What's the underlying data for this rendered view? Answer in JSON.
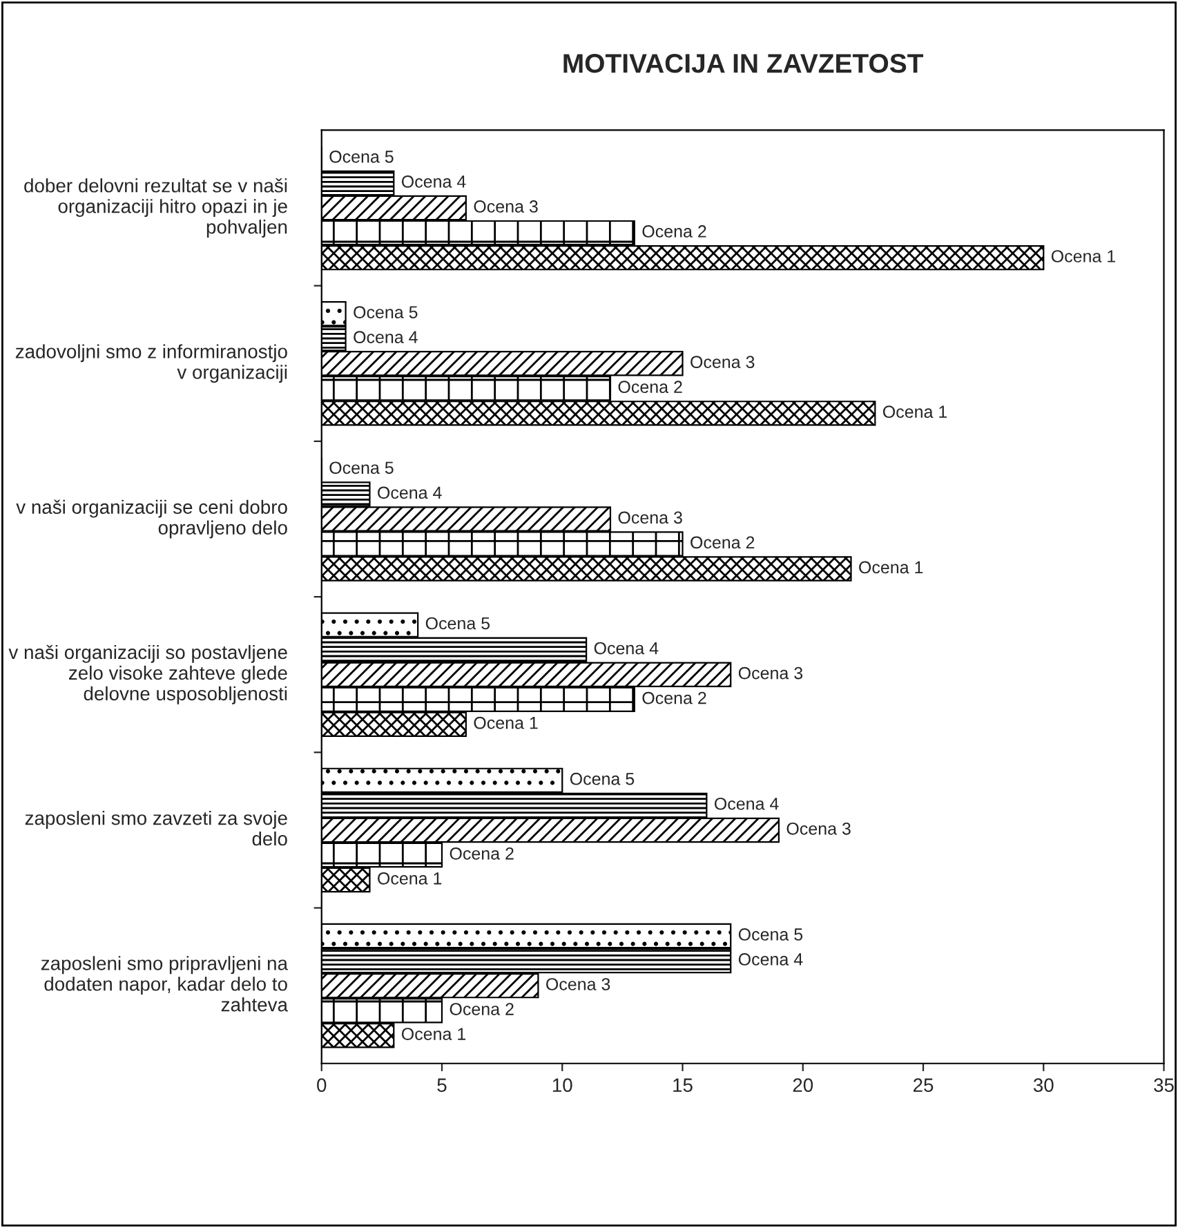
{
  "chart_data": {
    "type": "bar",
    "orientation": "horizontal",
    "title": "MOTIVACIJA IN ZAVZETOST",
    "categories": [
      "dober delovni rezultat se v naši organizaciji hitro opazi in je pohvaljen",
      "zadovoljni smo z informiranostjo v organizaciji",
      "v naši organizaciji se ceni dobro opravljeno delo",
      "v naši organizaciji so postavljene zelo visoke zahteve glede delovne usposobljenosti",
      "zaposleni smo zavzeti za svoje delo",
      "zaposleni smo pripravljeni na dodaten napor, kadar delo to zahteva"
    ],
    "series": [
      {
        "name": "Ocena 1",
        "color": "#000000",
        "values": [
          30,
          23,
          22,
          6,
          2,
          3
        ]
      },
      {
        "name": "Ocena 2",
        "color": "#000000",
        "values": [
          13,
          12,
          15,
          13,
          5,
          5
        ]
      },
      {
        "name": "Ocena 3",
        "color": "#000000",
        "values": [
          6,
          15,
          12,
          17,
          19,
          9
        ]
      },
      {
        "name": "Ocena 4",
        "color": "#000000",
        "values": [
          3,
          1,
          2,
          11,
          16,
          17
        ]
      },
      {
        "name": "Ocena 5",
        "color": "#000000",
        "values": [
          0,
          1,
          0,
          4,
          10,
          17
        ]
      }
    ],
    "xlim": [
      0,
      35
    ],
    "xticks": [
      0,
      5,
      10,
      15,
      20,
      25,
      30,
      35
    ],
    "grid": false,
    "legend": false
  }
}
